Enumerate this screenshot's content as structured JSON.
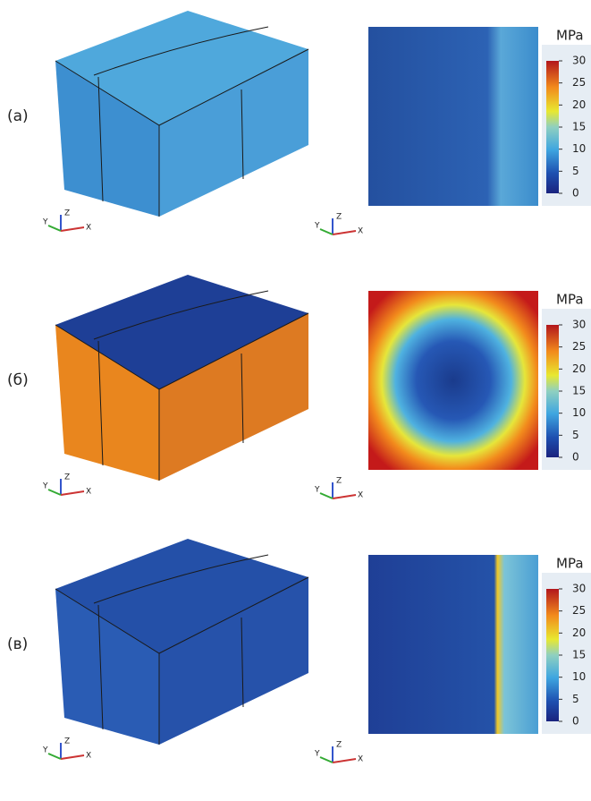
{
  "panels": [
    {
      "label": "(а)",
      "colorbar": {
        "unit": "MPa",
        "ticks": [
          30,
          25,
          20,
          15,
          10,
          5,
          0
        ]
      }
    },
    {
      "label": "(б)",
      "colorbar": {
        "unit": "MPa",
        "ticks": [
          30,
          25,
          20,
          15,
          10,
          5,
          0
        ]
      }
    },
    {
      "label": "(в)",
      "colorbar": {
        "unit": "MPa",
        "ticks": [
          30,
          25,
          20,
          15,
          10,
          5,
          0
        ]
      }
    }
  ],
  "triad": {
    "z": "Z",
    "y": "Y",
    "x": "X"
  }
}
